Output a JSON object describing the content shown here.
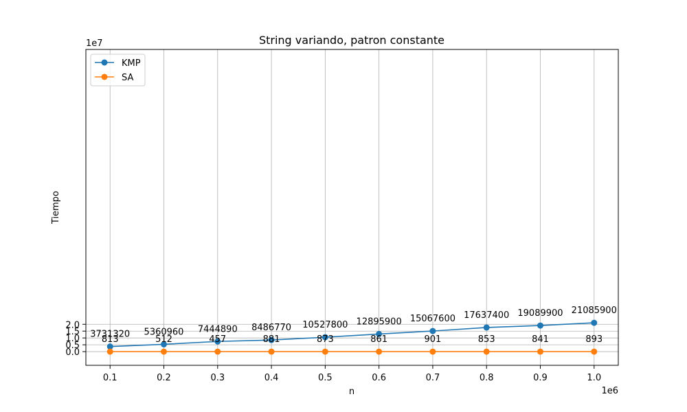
{
  "chart_data": {
    "type": "line",
    "title": "String variando, patron constante",
    "xlabel": "n",
    "ylabel": "Tiempo",
    "x_offset_text": "1e6",
    "y_offset_text": "1e7",
    "x": [
      0.1,
      0.2,
      0.3,
      0.4,
      0.5,
      0.6,
      0.7,
      0.8,
      0.9,
      1.0
    ],
    "xticks": [
      "0.1",
      "0.2",
      "0.3",
      "0.4",
      "0.5",
      "0.6",
      "0.7",
      "0.8",
      "0.9",
      "1.0"
    ],
    "yticks": [
      "0.0",
      "0.5",
      "1.0",
      "1.5",
      "2.0"
    ],
    "xlim": [
      0.055,
      1.045
    ],
    "ylim": [
      -1.0,
      22.1
    ],
    "grid": true,
    "legend_position": "top-left",
    "series": [
      {
        "name": "KMP",
        "color": "#1f77b4",
        "values": [
          3731320,
          5360960,
          7444890,
          8486770,
          10527800,
          12895900,
          15067600,
          17637400,
          19089900,
          21085900
        ],
        "labels": [
          "3731320",
          "5360960",
          "7444890",
          "8486770",
          "10527800",
          "12895900",
          "15067600",
          "17637400",
          "19089900",
          "21085900"
        ]
      },
      {
        "name": "SA",
        "color": "#ff7f0e",
        "values": [
          813,
          512,
          457,
          881,
          873,
          861,
          901,
          853,
          841,
          893
        ],
        "labels": [
          "813",
          "512",
          "457",
          "881",
          "873",
          "861",
          "901",
          "853",
          "841",
          "893"
        ]
      }
    ]
  }
}
